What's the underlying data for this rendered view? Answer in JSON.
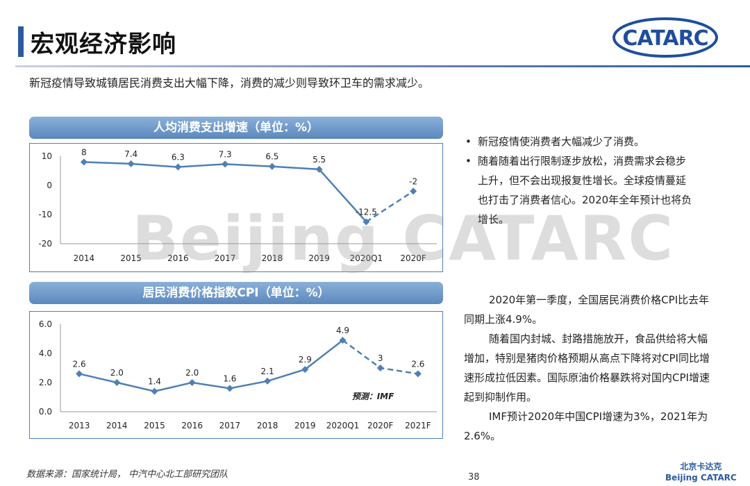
{
  "header": {
    "title": "宏观经济影响",
    "logo_text": "CATARC",
    "subtitle": "新冠疫情导致城镇居民消费支出大幅下降，消费的减少则导致环卫车的需求减少。"
  },
  "colors": {
    "accent": "#2c5aa0",
    "series_line": "#4f7fb5",
    "panel_header_top": "#8ab0d8",
    "panel_header_bottom": "#5b88bd"
  },
  "watermark": "Beijing CATARC",
  "chart1_header": "人均消费支出增速（单位：%）",
  "chart2_header": "居民消费价格指数CPI（单位：%）",
  "chart_data": [
    {
      "type": "line",
      "title": "人均消费支出增速（单位：%）",
      "categories": [
        "2014",
        "2015",
        "2016",
        "2017",
        "2018",
        "2019",
        "2020Q1",
        "2020F"
      ],
      "series": [
        {
          "values": [
            8,
            7.4,
            6.3,
            7.3,
            6.5,
            5.5,
            -12.5,
            -2
          ]
        }
      ],
      "data_labels": [
        "8",
        "7.4",
        "6.3",
        "7.3",
        "6.5",
        "5.5",
        "-12.5",
        "-2"
      ],
      "y_ticks": [
        "10",
        "0",
        "-10",
        "-20"
      ],
      "ylim": [
        -20,
        10
      ],
      "forecast_from_index": 6,
      "grid": false
    },
    {
      "type": "line",
      "title": "居民消费价格指数CPI（单位：%）",
      "categories": [
        "2013",
        "2014",
        "2015",
        "2016",
        "2017",
        "2018",
        "2019",
        "2020Q1",
        "2020F",
        "2021F"
      ],
      "series": [
        {
          "values": [
            2.6,
            2.0,
            1.4,
            2.0,
            1.6,
            2.1,
            2.9,
            4.9,
            3,
            2.6
          ]
        }
      ],
      "data_labels": [
        "2.6",
        "2.0",
        "1.4",
        "2.0",
        "1.6",
        "2.1",
        "2.9",
        "4.9",
        "3",
        "2.6"
      ],
      "y_ticks": [
        "6.0",
        "4.0",
        "2.0",
        "0.0"
      ],
      "ylim": [
        0,
        6
      ],
      "forecast_from_index": 7,
      "annotation": "预测：IMF",
      "grid": false
    }
  ],
  "bullets": [
    "新冠疫情使消费者大幅减少了消费。",
    "随着随着出行限制逐步放松，消费需求会稳步上升，但不会出现报复性增长。全球疫情蔓延也打击了消费者信心。2020年全年预计也将负增长。"
  ],
  "paragraphs": [
    "2020年第一季度，全国居民消费价格CPI比去年同期上涨4.9%。",
    "随着国内封城、封路措施放开，食品供给将大幅增加，特别是猪肉价格预期从高点下降将对CPI同比增速形成拉低因素。国际原油价格暴跌将对国内CPI增速起到抑制作用。",
    "IMF预计2020年中国CPI增速为3%，2021年为2.6%。"
  ],
  "footer": {
    "source": "数据来源：国家统计局，  中汽中心北工部研究团队",
    "page_number": "38",
    "brand_cn": "北京卡达克",
    "brand_en": "Beijing CATARC"
  }
}
